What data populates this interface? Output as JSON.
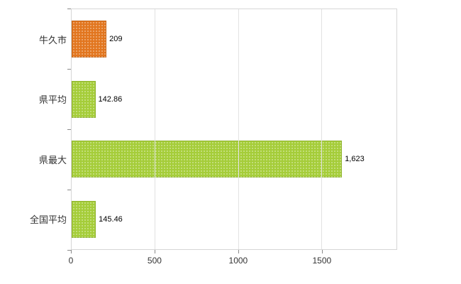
{
  "chart_data": {
    "type": "bar",
    "orientation": "horizontal",
    "title": "",
    "xlabel": "",
    "ylabel": "",
    "categories": [
      "牛久市",
      "県平均",
      "県最大",
      "全国平均"
    ],
    "values": [
      209,
      142.86,
      1623,
      145.46
    ],
    "value_labels": [
      "209",
      "142.86",
      "1,623",
      "145.46"
    ],
    "bar_colors": [
      "#e2761f",
      "#a5cd39",
      "#a5cd39",
      "#a5cd39"
    ],
    "xlim": [
      0,
      1950
    ],
    "x_ticks": [
      0,
      500,
      1000,
      1500
    ],
    "x_tick_labels": [
      "0",
      "500",
      "1000",
      "1500"
    ],
    "grid": "vertical",
    "legend": "none"
  },
  "colors": {
    "accent_orange": "#e2761f",
    "accent_green": "#a5cd39",
    "grid": "#e2e2e2",
    "axis_border": "#d6d6d6",
    "tick": "#8a8a8a",
    "text": "#333333"
  }
}
